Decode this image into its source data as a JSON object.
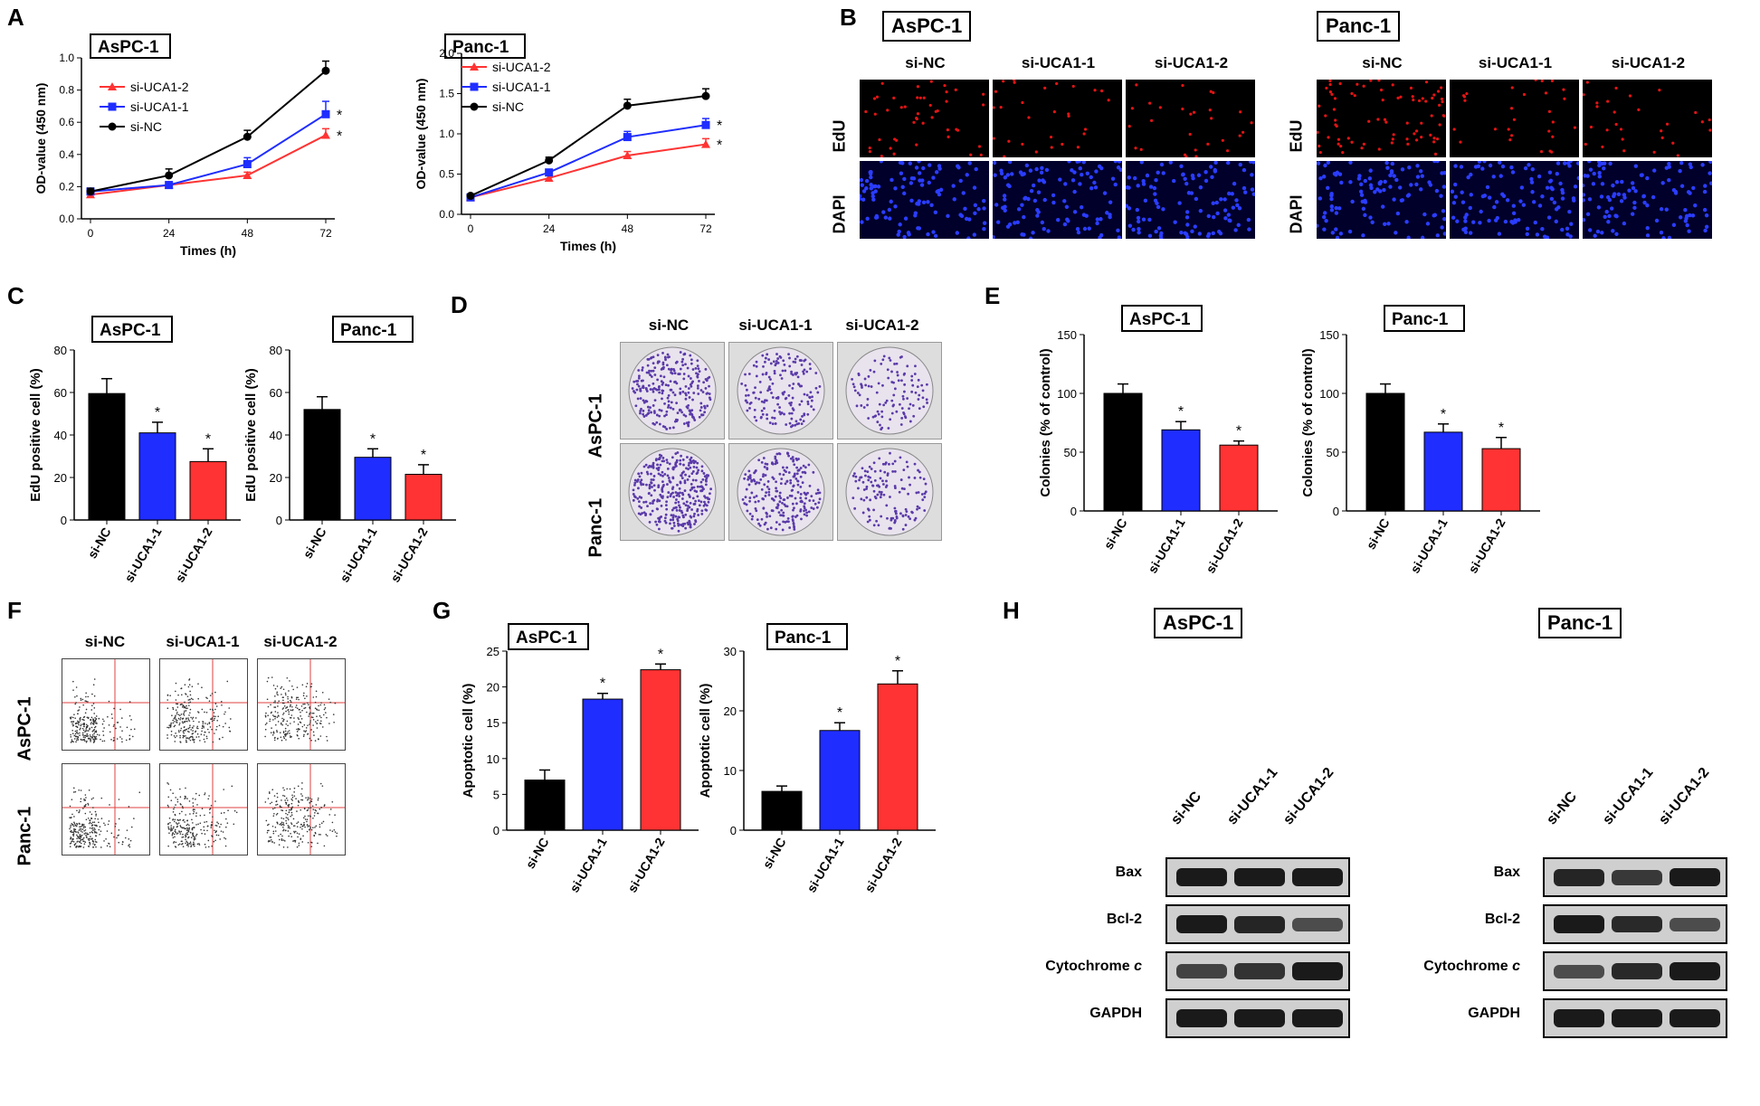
{
  "panels": {
    "A": "A",
    "B": "B",
    "C": "C",
    "D": "D",
    "E": "E",
    "F": "F",
    "G": "G",
    "H": "H"
  },
  "colors": {
    "si_NC": "#000000",
    "si_UCA1_1": "#1f2dff",
    "si_UCA1_2": "#ff3333"
  },
  "chart_data": [
    {
      "id": "A_aspc1",
      "type": "line",
      "title": "AsPC-1",
      "xlabel": "Times (h)",
      "ylabel": "OD-value (450 nm)",
      "x": [
        0,
        24,
        48,
        72
      ],
      "ylim": [
        0,
        1.0
      ],
      "yticks": [
        "0.0",
        "0.2",
        "0.4",
        "0.6",
        "0.8",
        "1.0"
      ],
      "xticks": [
        "0",
        "24",
        "48",
        "72"
      ],
      "series": [
        {
          "name": "si-UCA1-2",
          "values": [
            0.15,
            0.21,
            0.27,
            0.52
          ],
          "err": [
            0.02,
            0.02,
            0.02,
            0.04
          ],
          "marker": "triangle",
          "color": "#ff3333"
        },
        {
          "name": "si-UCA1-1",
          "values": [
            0.17,
            0.21,
            0.34,
            0.65
          ],
          "err": [
            0.02,
            0.02,
            0.04,
            0.08
          ],
          "marker": "square",
          "color": "#1f2dff"
        },
        {
          "name": "si-NC",
          "values": [
            0.17,
            0.27,
            0.51,
            0.92
          ],
          "err": [
            0.02,
            0.04,
            0.04,
            0.06
          ],
          "marker": "circle",
          "color": "#000000"
        }
      ],
      "sig": [
        "*",
        "*"
      ]
    },
    {
      "id": "A_panc1",
      "type": "line",
      "title": "Panc-1",
      "xlabel": "Times (h)",
      "ylabel": "OD-value (450 nm)",
      "x": [
        0,
        24,
        48,
        72
      ],
      "ylim": [
        0,
        2.0
      ],
      "yticks": [
        "0.0",
        "0.5",
        "1.0",
        "1.5",
        "2.0"
      ],
      "xticks": [
        "0",
        "24",
        "48",
        "72"
      ],
      "series": [
        {
          "name": "si-UCA1-2",
          "values": [
            0.21,
            0.45,
            0.73,
            0.87
          ],
          "err": [
            0.02,
            0.04,
            0.05,
            0.07
          ],
          "marker": "triangle",
          "color": "#ff3333"
        },
        {
          "name": "si-UCA1-1",
          "values": [
            0.21,
            0.52,
            0.96,
            1.11
          ],
          "err": [
            0.02,
            0.04,
            0.07,
            0.08
          ],
          "marker": "square",
          "color": "#1f2dff"
        },
        {
          "name": "si-NC",
          "values": [
            0.23,
            0.67,
            1.35,
            1.47
          ],
          "err": [
            0.02,
            0.04,
            0.08,
            0.09
          ],
          "marker": "circle",
          "color": "#000000"
        }
      ],
      "sig": [
        "*",
        "*"
      ]
    },
    {
      "id": "C_aspc1",
      "type": "bar",
      "title": "AsPC-1",
      "ylabel": "EdU positive cell (%)",
      "ylim": [
        0,
        80
      ],
      "yticks": [
        "0",
        "20",
        "40",
        "60",
        "80"
      ],
      "categories": [
        "si-NC",
        "si-UCA1-1",
        "si-UCA1-2"
      ],
      "values": [
        59.5,
        41,
        27.5
      ],
      "err": [
        7,
        5,
        6
      ],
      "sig": [
        "",
        "*",
        "*"
      ]
    },
    {
      "id": "C_panc1",
      "type": "bar",
      "title": "Panc-1",
      "ylabel": "EdU positive cell (%)",
      "ylim": [
        0,
        80
      ],
      "yticks": [
        "0",
        "20",
        "40",
        "60",
        "80"
      ],
      "categories": [
        "si-NC",
        "si-UCA1-1",
        "si-UCA1-2"
      ],
      "values": [
        52,
        29.5,
        21.5
      ],
      "err": [
        6,
        4,
        4.5
      ],
      "sig": [
        "",
        "*",
        "*"
      ]
    },
    {
      "id": "E_aspc1",
      "type": "bar",
      "title": "AsPC-1",
      "ylabel": "Colonies (% of control)",
      "ylim": [
        0,
        150
      ],
      "yticks": [
        "0",
        "50",
        "100",
        "150"
      ],
      "categories": [
        "si-NC",
        "si-UCA1-1",
        "si-UCA1-2"
      ],
      "values": [
        100,
        69,
        56
      ],
      "err": [
        8,
        7,
        3.5
      ],
      "sig": [
        "",
        "*",
        "*"
      ]
    },
    {
      "id": "E_panc1",
      "type": "bar",
      "title": "Panc-1",
      "ylabel": "Colonies (% of control)",
      "ylim": [
        0,
        150
      ],
      "yticks": [
        "0",
        "50",
        "100",
        "150"
      ],
      "categories": [
        "si-NC",
        "si-UCA1-1",
        "si-UCA1-2"
      ],
      "values": [
        100,
        67,
        53
      ],
      "err": [
        8,
        7,
        9.5
      ],
      "sig": [
        "",
        "*",
        "*"
      ]
    },
    {
      "id": "G_aspc1",
      "type": "bar",
      "title": "AsPC-1",
      "ylabel": "Apoptotic cell (%)",
      "ylim": [
        0,
        25
      ],
      "yticks": [
        "0",
        "5",
        "10",
        "15",
        "20",
        "25"
      ],
      "categories": [
        "si-NC",
        "si-UCA1-1",
        "si-UCA1-2"
      ],
      "values": [
        7,
        18.3,
        22.4
      ],
      "err": [
        1.4,
        0.8,
        0.8
      ],
      "sig": [
        "",
        "*",
        "*"
      ]
    },
    {
      "id": "G_panc1",
      "type": "bar",
      "title": "Panc-1",
      "ylabel": "Apoptotic cell (%)",
      "ylim": [
        0,
        30
      ],
      "yticks": [
        "0",
        "10",
        "20",
        "30"
      ],
      "categories": [
        "si-NC",
        "si-UCA1-1",
        "si-UCA1-2"
      ],
      "values": [
        6.5,
        16.7,
        24.5
      ],
      "err": [
        0.9,
        1.3,
        2.2
      ],
      "sig": [
        "",
        "*",
        "*"
      ]
    }
  ],
  "panel_B": {
    "aspc1_title": "AsPC-1",
    "panc1_title": "Panc-1",
    "columns": [
      "si-NC",
      "si-UCA1-1",
      "si-UCA1-2"
    ],
    "rows": [
      "EdU",
      "DAPI"
    ]
  },
  "panel_D": {
    "columns": [
      "si-NC",
      "si-UCA1-1",
      "si-UCA1-2"
    ],
    "rows": [
      "AsPC-1",
      "Panc-1"
    ]
  },
  "panel_F": {
    "columns": [
      "si-NC",
      "si-UCA1-1",
      "si-UCA1-2"
    ],
    "rows": [
      "AsPC-1",
      "Panc-1"
    ]
  },
  "panel_H": {
    "aspc1_title": "AsPC-1",
    "panc1_title": "Panc-1",
    "columns": [
      "si-NC",
      "si-UCA1-1",
      "si-UCA1-2"
    ],
    "proteins": [
      "Bax",
      "Bcl-2",
      "Cytochrome c",
      "GAPDH"
    ],
    "cyto_prefix": "Cytochrome ",
    "cyto_italic": "c"
  }
}
